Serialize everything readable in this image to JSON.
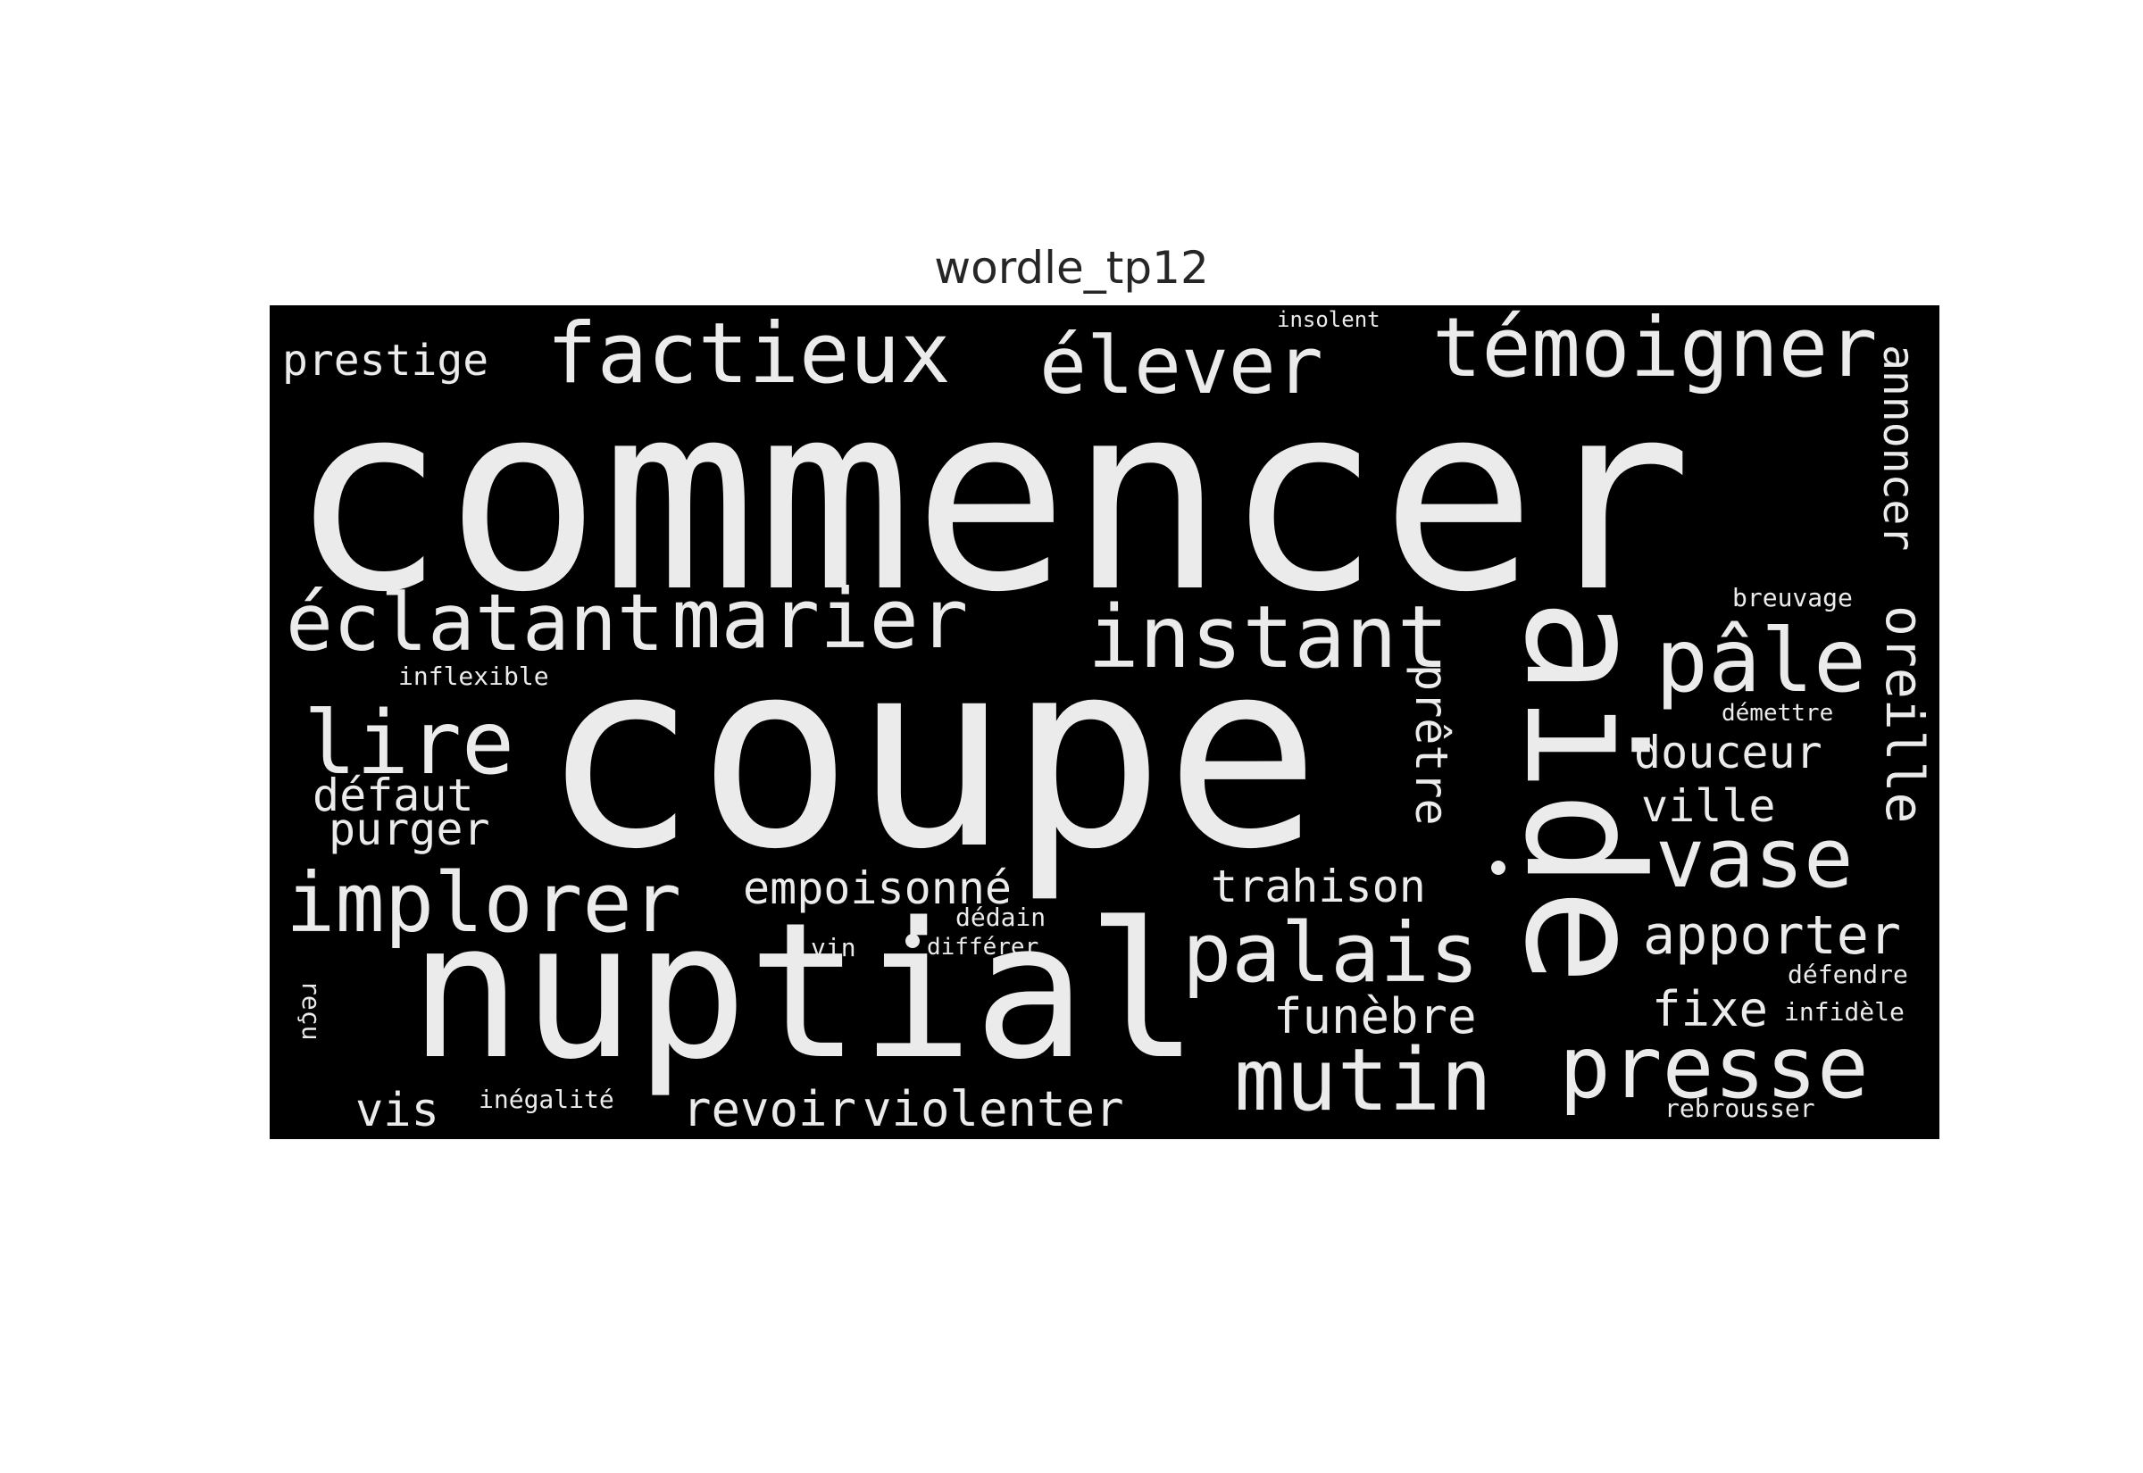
{
  "title": "wordle_tp12",
  "colors": {
    "background": "#000000",
    "word": "#ebebeb",
    "page": "#ffffff",
    "title": "#262626"
  },
  "words": {
    "commencer": "commencer",
    "coupe": "coupe",
    "nuptial": "nuptial",
    "aide": "aide",
    "instant": "instant",
    "marier": "marier",
    "eclatant": "éclatant",
    "temoigner": "témoigner",
    "factieux": "factieux",
    "elever": "élever",
    "prestige": "prestige",
    "insolent": "insolent",
    "annoncer": "annoncer",
    "breuvage": "breuvage",
    "pale": "pâle",
    "inflexible": "inflexible",
    "lire": "lire",
    "demettre": "démettre",
    "douceur": "douceur",
    "oreille": "oreille",
    "defaut": "défaut",
    "ville": "ville",
    "purger": "purger",
    "pretre": "prêtre",
    "vase": "vase",
    "implorer": "implorer",
    "empoisonne": "empoisonné",
    "trahison": "trahison",
    "dedain": "dédain",
    "apporter": "apporter",
    "vin": "vin",
    "differer": "différer",
    "palais": "palais",
    "defendre": "défendre",
    "recu": "reçu",
    "fixe": "fixe",
    "infidele": "infidèle",
    "funebre": "funèbre",
    "presse": "presse",
    "mutin": "mutin",
    "vis": "vis",
    "inegalite": "inégalité",
    "revoir": "revoir",
    "violenter": "violenter",
    "rebrousser": "rebrousser"
  }
}
